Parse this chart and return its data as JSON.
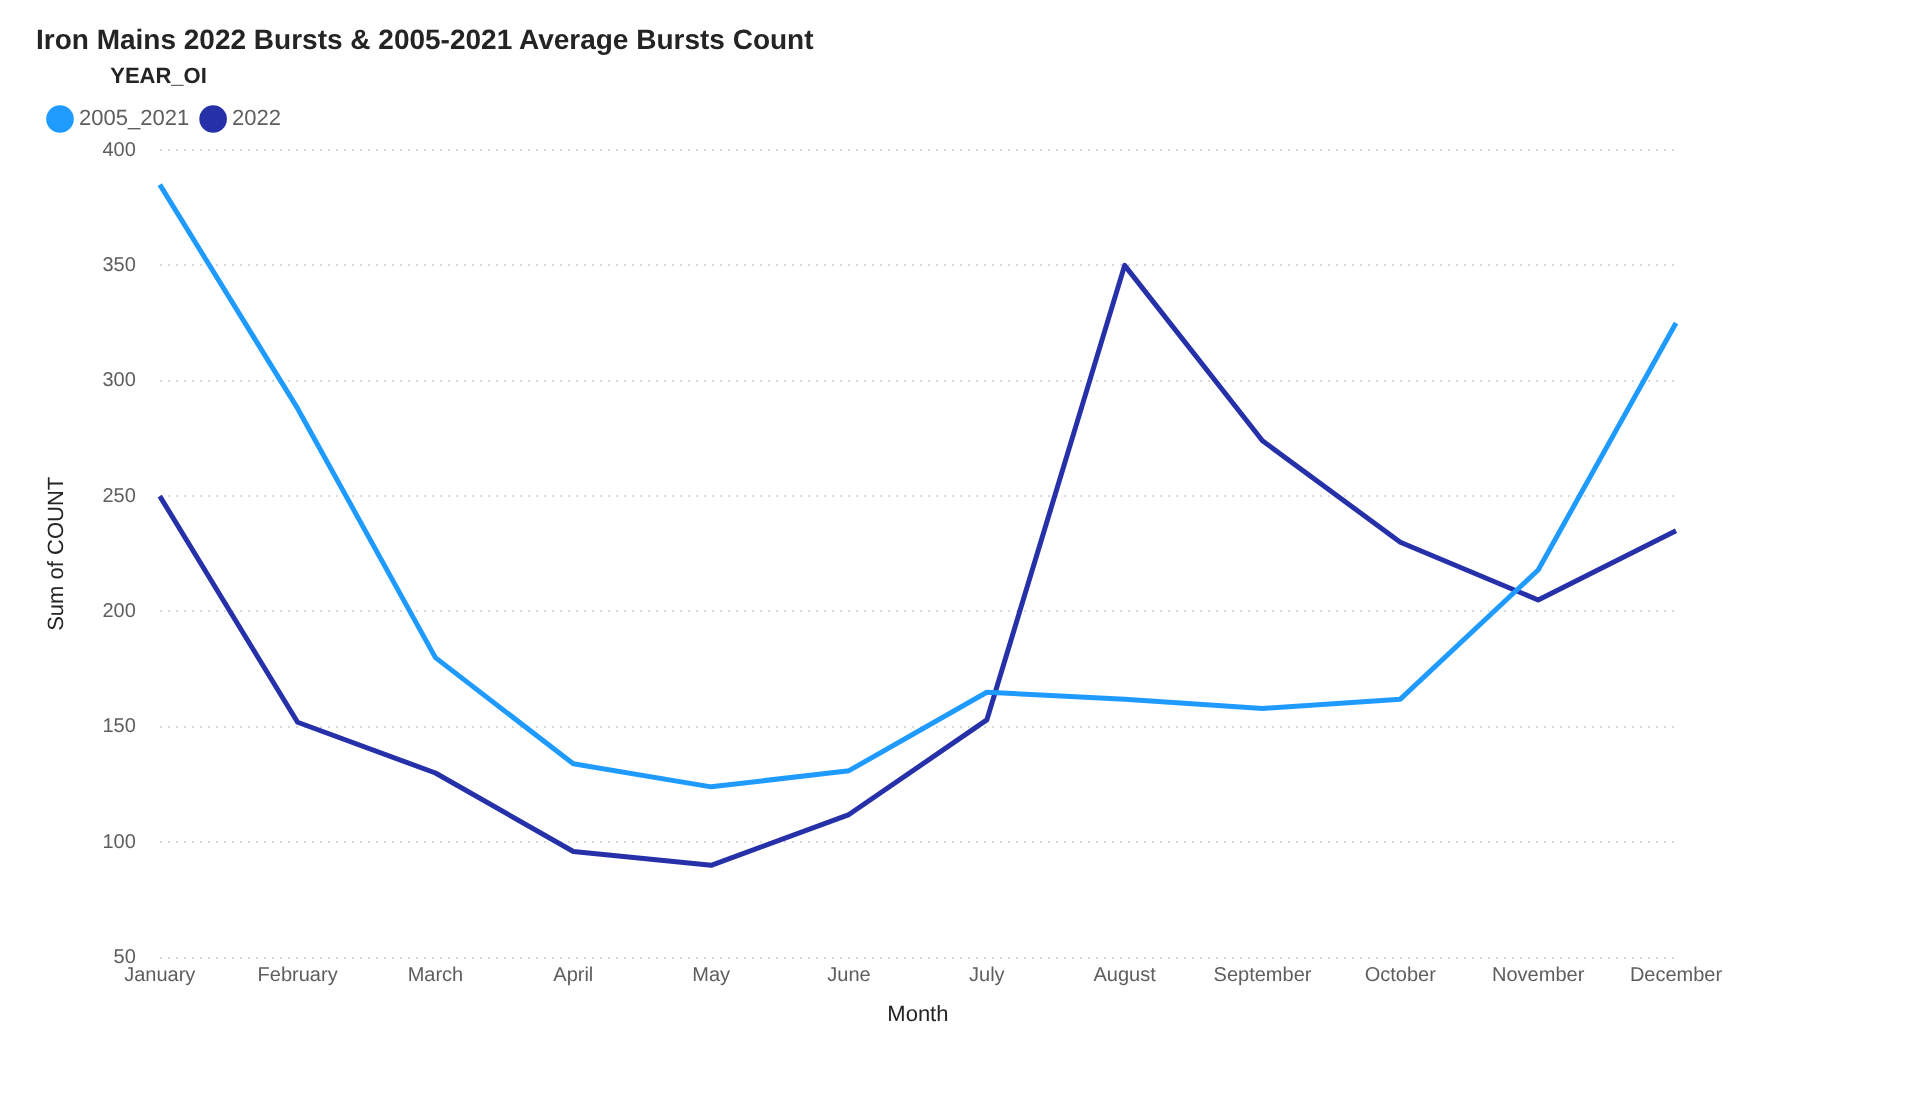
{
  "chart_data": {
    "type": "line",
    "title": "Iron Mains 2022 Bursts & 2005-2021 Average Bursts Count",
    "xlabel": "Month",
    "ylabel": "Sum of COUNT",
    "legend_title": "YEAR_OI",
    "legend": "top left",
    "grid": "y",
    "marker": "none",
    "line_style": "solid",
    "categories": [
      "January",
      "February",
      "March",
      "April",
      "May",
      "June",
      "July",
      "August",
      "September",
      "October",
      "November",
      "December"
    ],
    "ylim": [
      50,
      400
    ],
    "yticks": [
      50,
      100,
      150,
      200,
      250,
      300,
      350,
      400
    ],
    "series": [
      {
        "name": "2005_2021",
        "color": "#1f9bff",
        "values": [
          385,
          288,
          180,
          134,
          124,
          131,
          165,
          162,
          158,
          162,
          218,
          325
        ]
      },
      {
        "name": "2022",
        "color": "#2630a8",
        "values": [
          250,
          152,
          130,
          96,
          90,
          112,
          153,
          350,
          274,
          230,
          205,
          235
        ]
      }
    ]
  }
}
